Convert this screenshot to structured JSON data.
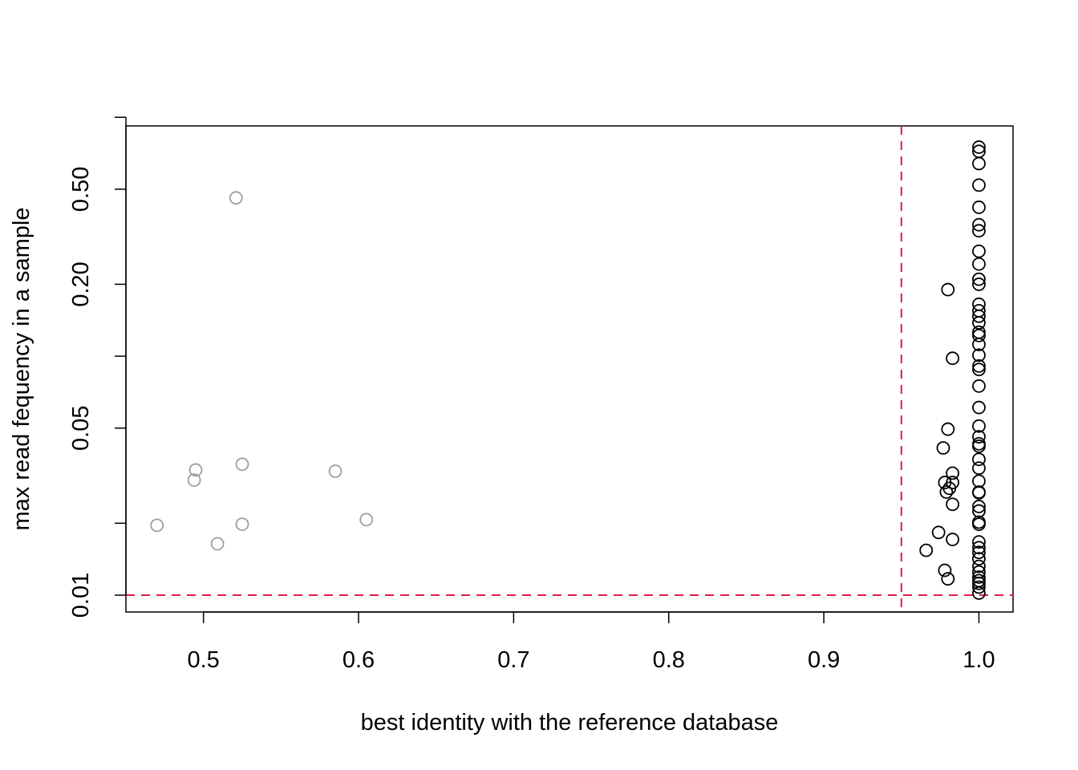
{
  "chart_data": {
    "type": "scatter",
    "title": "",
    "xlabel": "best identity with the reference database",
    "ylabel": "max read fequency in a sample",
    "xlim": [
      0.45,
      1.022
    ],
    "ylim": [
      0.0085,
      0.92
    ],
    "y_scale": "log",
    "grid": false,
    "legend": "none",
    "x_ticks": [
      {
        "value": 0.5,
        "label": "0.5"
      },
      {
        "value": 0.6,
        "label": "0.6"
      },
      {
        "value": 0.7,
        "label": "0.7"
      },
      {
        "value": 0.8,
        "label": "0.8"
      },
      {
        "value": 0.9,
        "label": "0.9"
      },
      {
        "value": 1.0,
        "label": "1.0"
      }
    ],
    "y_ticks": [
      {
        "value": 0.01,
        "label": "0.01"
      },
      {
        "value": 0.02,
        "label": ""
      },
      {
        "value": 0.05,
        "label": "0.05"
      },
      {
        "value": 0.1,
        "label": ""
      },
      {
        "value": 0.2,
        "label": "0.20"
      },
      {
        "value": 0.5,
        "label": "0.50"
      },
      {
        "value": 1.0,
        "label": ""
      }
    ],
    "reference_lines": [
      {
        "axis": "x",
        "value": 0.95,
        "color": "#df1c44",
        "style": "dashed"
      },
      {
        "axis": "y",
        "value": 0.01,
        "color": "#df1c44",
        "style": "dashed"
      }
    ],
    "series": [
      {
        "color": "#9e9e9e",
        "points": [
          [
            0.521,
            0.46
          ],
          [
            0.47,
            0.0196
          ],
          [
            0.495,
            0.0334
          ],
          [
            0.494,
            0.0303
          ],
          [
            0.525,
            0.0353
          ],
          [
            0.509,
            0.0164
          ],
          [
            0.525,
            0.0198
          ],
          [
            0.585,
            0.033
          ],
          [
            0.605,
            0.0207
          ]
        ]
      },
      {
        "color": "#000000",
        "points": [
          [
            1.0,
            0.75
          ],
          [
            1.0,
            0.72
          ],
          [
            1.0,
            0.64
          ],
          [
            1.0,
            0.52
          ],
          [
            1.0,
            0.42
          ],
          [
            1.0,
            0.355
          ],
          [
            1.0,
            0.335
          ],
          [
            1.0,
            0.275
          ],
          [
            1.0,
            0.243
          ],
          [
            1.0,
            0.21
          ],
          [
            1.0,
            0.2
          ],
          [
            1.0,
            0.165
          ],
          [
            1.0,
            0.155
          ],
          [
            1.0,
            0.147
          ],
          [
            1.0,
            0.138
          ],
          [
            1.0,
            0.126
          ],
          [
            1.0,
            0.122
          ],
          [
            1.0,
            0.112
          ],
          [
            1.0,
            0.101
          ],
          [
            1.0,
            0.091
          ],
          [
            1.0,
            0.088
          ],
          [
            1.0,
            0.075
          ],
          [
            1.0,
            0.061
          ],
          [
            1.0,
            0.051
          ],
          [
            1.0,
            0.046
          ],
          [
            1.0,
            0.043
          ],
          [
            1.0,
            0.042
          ],
          [
            1.0,
            0.037
          ],
          [
            1.0,
            0.034
          ],
          [
            1.0,
            0.03
          ],
          [
            1.0,
            0.027
          ],
          [
            1.0,
            0.0268
          ],
          [
            1.0,
            0.0235
          ],
          [
            1.0,
            0.0225
          ],
          [
            1.0,
            0.0202
          ],
          [
            1.0,
            0.0198
          ],
          [
            1.0,
            0.0167
          ],
          [
            1.0,
            0.0158
          ],
          [
            1.0,
            0.0151
          ],
          [
            1.0,
            0.0142
          ],
          [
            1.0,
            0.0132
          ],
          [
            1.0,
            0.0125
          ],
          [
            1.0,
            0.0119
          ],
          [
            1.0,
            0.0115
          ],
          [
            1.0,
            0.0112
          ],
          [
            1.0,
            0.0108
          ],
          [
            1.0,
            0.0102
          ],
          [
            0.98,
            0.19
          ],
          [
            0.983,
            0.098
          ],
          [
            0.98,
            0.0495
          ],
          [
            0.977,
            0.0413
          ],
          [
            0.983,
            0.0324
          ],
          [
            0.978,
            0.0296
          ],
          [
            0.983,
            0.0296
          ],
          [
            0.981,
            0.028
          ],
          [
            0.979,
            0.027
          ],
          [
            0.983,
            0.024
          ],
          [
            0.974,
            0.0183
          ],
          [
            0.983,
            0.0171
          ],
          [
            0.966,
            0.0154
          ],
          [
            0.978,
            0.0127
          ],
          [
            0.98,
            0.0117
          ]
        ]
      }
    ]
  }
}
